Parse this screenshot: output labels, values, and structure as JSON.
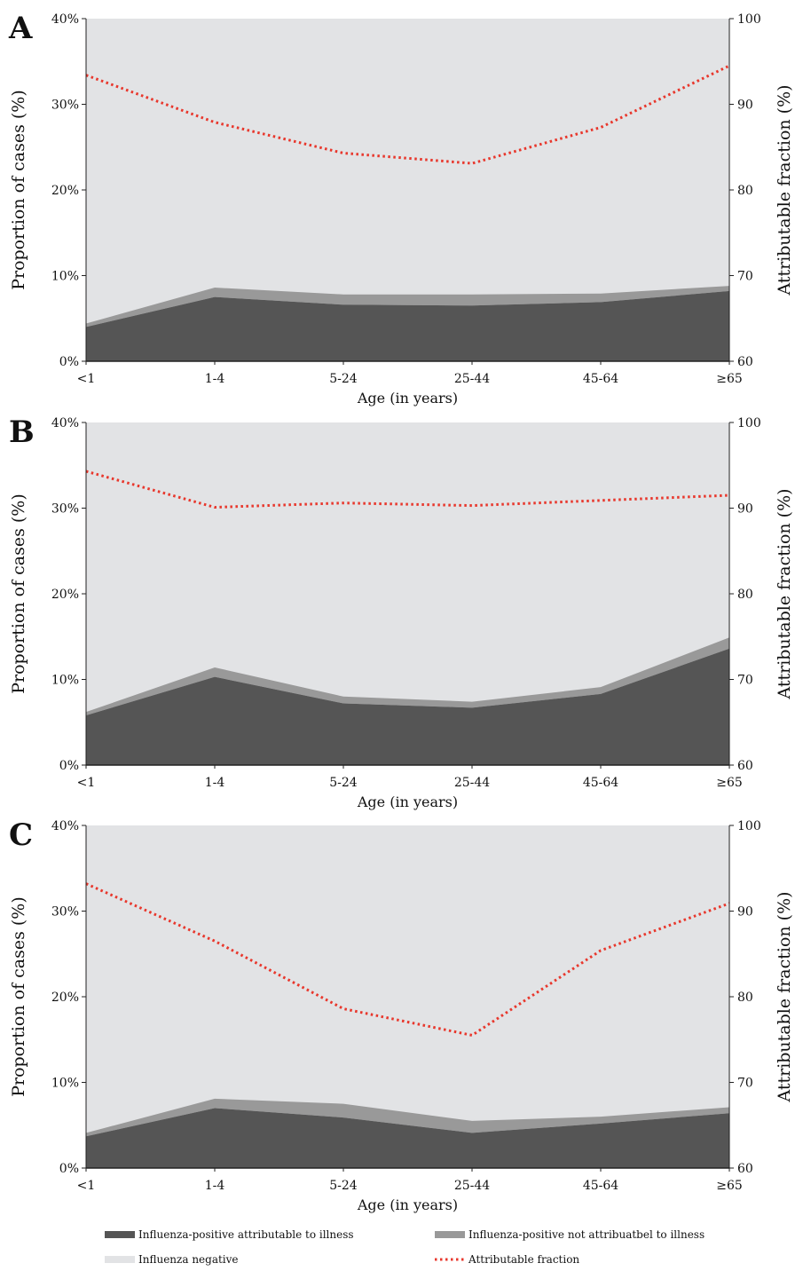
{
  "colors": {
    "positive_attributable": "#555555",
    "positive_not_attributable": "#999999",
    "negative": "#e2e3e5",
    "attributable_fraction": "#e8372c"
  },
  "legend": [
    {
      "key": "positive_attributable",
      "label": "Influenza-positive attributable to illness"
    },
    {
      "key": "positive_not_attributable",
      "label": "Influenza-positive not attribuatbel to illness"
    },
    {
      "key": "negative",
      "label": "Influenza negative"
    },
    {
      "key": "attributable_fraction",
      "label": "Attributable fraction"
    }
  ],
  "chart_data": [
    {
      "type": "area",
      "panel": "A",
      "categories": [
        "<1",
        "1-4",
        "5-24",
        "25-44",
        "45-64",
        "≥65"
      ],
      "xlabel": "Age (in years)",
      "ylabel": "Proportion of cases (%)",
      "y2label": "Attributable fraction (%)",
      "ylim": [
        0,
        40
      ],
      "y2lim": [
        60,
        100
      ],
      "yticks": [
        "0%",
        "10%",
        "20%",
        "30%",
        "40%"
      ],
      "y2ticks": [
        "60",
        "70",
        "80",
        "90",
        "100"
      ],
      "series": [
        {
          "name": "Influenza-positive attributable to illness",
          "values": [
            4.0,
            7.5,
            6.6,
            6.5,
            6.9,
            8.2
          ]
        },
        {
          "name": "Influenza-positive not attribuatbel to illness",
          "values": [
            0.4,
            1.1,
            1.2,
            1.3,
            1.0,
            0.6
          ]
        },
        {
          "name": "Attributable fraction",
          "axis": "right",
          "values": [
            93.4,
            87.9,
            84.3,
            83.1,
            87.3,
            94.5
          ]
        }
      ]
    },
    {
      "type": "area",
      "panel": "B",
      "categories": [
        "<1",
        "1-4",
        "5-24",
        "25-44",
        "45-64",
        "≥65"
      ],
      "xlabel": "Age (in years)",
      "ylabel": "Proportion of cases (%)",
      "y2label": "Attributable fraction (%)",
      "ylim": [
        0,
        40
      ],
      "y2lim": [
        60,
        100
      ],
      "yticks": [
        "0%",
        "10%",
        "20%",
        "30%",
        "40%"
      ],
      "y2ticks": [
        "60",
        "70",
        "80",
        "90",
        "100"
      ],
      "series": [
        {
          "name": "Influenza-positive attributable to illness",
          "values": [
            5.8,
            10.3,
            7.2,
            6.7,
            8.3,
            13.6
          ]
        },
        {
          "name": "Influenza-positive not attribuatbel to illness",
          "values": [
            0.4,
            1.1,
            0.8,
            0.7,
            0.8,
            1.3
          ]
        },
        {
          "name": "Attributable fraction",
          "axis": "right",
          "values": [
            94.3,
            90.1,
            90.6,
            90.3,
            90.9,
            91.5
          ]
        }
      ]
    },
    {
      "type": "area",
      "panel": "C",
      "categories": [
        "<1",
        "1-4",
        "5-24",
        "25-44",
        "45-64",
        "≥65"
      ],
      "xlabel": "Age (in years)",
      "ylabel": "Proportion of cases (%)",
      "y2label": "Attributable fraction (%)",
      "ylim": [
        0,
        40
      ],
      "y2lim": [
        60,
        100
      ],
      "yticks": [
        "0%",
        "10%",
        "20%",
        "30%",
        "40%"
      ],
      "y2ticks": [
        "60",
        "70",
        "80",
        "90",
        "100"
      ],
      "series": [
        {
          "name": "Influenza-positive attributable to illness",
          "values": [
            3.7,
            7.0,
            5.9,
            4.1,
            5.2,
            6.4
          ]
        },
        {
          "name": "Influenza-positive not attribuatbel to illness",
          "values": [
            0.4,
            1.1,
            1.6,
            1.4,
            0.8,
            0.7
          ]
        },
        {
          "name": "Attributable fraction",
          "axis": "right",
          "values": [
            93.2,
            86.5,
            78.6,
            75.5,
            85.4,
            90.9
          ]
        }
      ]
    }
  ]
}
